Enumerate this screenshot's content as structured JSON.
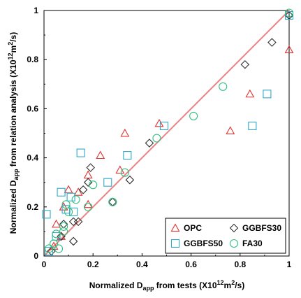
{
  "chart_data": {
    "type": "scatter",
    "xlabel": {
      "pre": "Normalized D",
      "sub": "app",
      "post": " from tests (X10",
      "sup": "12",
      "post2": "m",
      "sup2": "2",
      "post3": "/s)"
    },
    "ylabel": {
      "pre": "Normalized D",
      "sub": "app",
      "post": " from relation analysis (X10",
      "sup": "12",
      "post2": "m",
      "sup2": "2",
      "post3": "/s)"
    },
    "xlim": [
      0,
      1
    ],
    "ylim": [
      0,
      1
    ],
    "x_ticks": [
      "0",
      "0.2",
      "0.4",
      "0.6",
      "0.8",
      "1"
    ],
    "y_ticks": [
      "0",
      "0.2",
      "0.4",
      "0.6",
      "0.8",
      "1"
    ],
    "grid": false,
    "legend_position": "bottom-right",
    "reference_line": {
      "type": "y=x",
      "color": "#f08080"
    },
    "series": [
      {
        "name": "OPC",
        "marker": "triangle",
        "color": "#e03030",
        "points": [
          [
            0.04,
            0.04
          ],
          [
            0.05,
            0.13
          ],
          [
            0.07,
            0.08
          ],
          [
            0.08,
            0.2
          ],
          [
            0.1,
            0.27
          ],
          [
            0.14,
            0.26
          ],
          [
            0.18,
            0.33
          ],
          [
            0.18,
            0.21
          ],
          [
            0.23,
            0.41
          ],
          [
            0.31,
            0.35
          ],
          [
            0.33,
            0.5
          ],
          [
            0.47,
            0.54
          ],
          [
            0.76,
            0.51
          ],
          [
            0.84,
            0.66
          ],
          [
            1.0,
            0.84
          ]
        ]
      },
      {
        "name": "GGBFS30",
        "marker": "diamond",
        "color": "#303030",
        "points": [
          [
            0.03,
            0.02
          ],
          [
            0.07,
            0.08
          ],
          [
            0.08,
            0.13
          ],
          [
            0.12,
            0.06
          ],
          [
            0.12,
            0.14
          ],
          [
            0.14,
            0.14
          ],
          [
            0.16,
            0.27
          ],
          [
            0.18,
            0.3
          ],
          [
            0.19,
            0.36
          ],
          [
            0.28,
            0.22
          ],
          [
            0.35,
            0.31
          ],
          [
            0.43,
            0.46
          ],
          [
            0.82,
            0.78
          ],
          [
            0.93,
            0.87
          ],
          [
            1.0,
            0.98
          ]
        ]
      },
      {
        "name": "GGBFS50",
        "marker": "square",
        "color": "#30a8c8",
        "points": [
          [
            0.01,
            0.17
          ],
          [
            0.02,
            0.02
          ],
          [
            0.05,
            0.08
          ],
          [
            0.07,
            0.26
          ],
          [
            0.09,
            0.19
          ],
          [
            0.11,
            0.24
          ],
          [
            0.12,
            0.18
          ],
          [
            0.15,
            0.42
          ],
          [
            0.26,
            0.3
          ],
          [
            0.34,
            0.41
          ],
          [
            0.49,
            0.53
          ],
          [
            0.85,
            0.53
          ],
          [
            0.91,
            0.66
          ],
          [
            1.0,
            0.98
          ]
        ]
      },
      {
        "name": "FA30",
        "marker": "circle",
        "color": "#30c080",
        "points": [
          [
            0.02,
            0.03
          ],
          [
            0.04,
            0.05
          ],
          [
            0.05,
            0.09
          ],
          [
            0.06,
            0.03
          ],
          [
            0.08,
            0.1
          ],
          [
            0.08,
            0.12
          ],
          [
            0.09,
            0.21
          ],
          [
            0.1,
            0.18
          ],
          [
            0.13,
            0.23
          ],
          [
            0.18,
            0.2
          ],
          [
            0.2,
            0.29
          ],
          [
            0.28,
            0.22
          ],
          [
            0.33,
            0.34
          ],
          [
            0.46,
            0.48
          ],
          [
            0.61,
            0.57
          ],
          [
            0.73,
            0.69
          ],
          [
            1.0,
            0.99
          ]
        ]
      }
    ],
    "legend": {
      "rows": [
        [
          "OPC",
          "GGBFS30"
        ],
        [
          "GGBFS50",
          "FA30"
        ]
      ]
    }
  }
}
